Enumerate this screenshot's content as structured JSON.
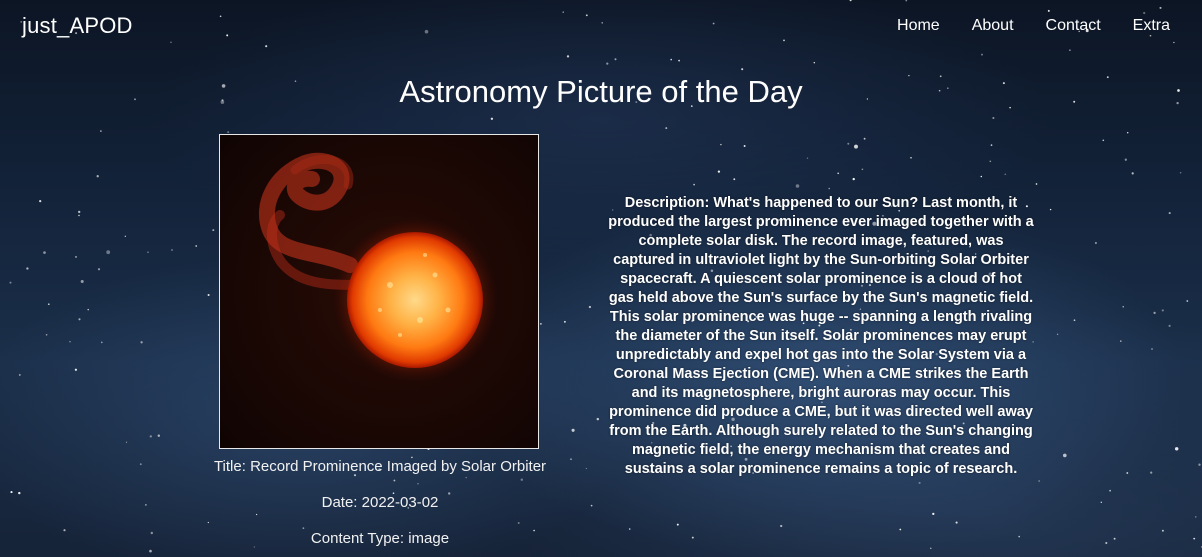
{
  "navbar": {
    "brand": "just_APOD",
    "links": [
      {
        "label": "Home"
      },
      {
        "label": "About"
      },
      {
        "label": "Contact"
      },
      {
        "label": "Extra"
      }
    ]
  },
  "main": {
    "title": "Astronomy Picture of the Day",
    "image": {
      "subject": "solar-prominence-image"
    },
    "meta": {
      "title_line": "Title: Record Prominence Imaged by Solar Orbiter",
      "date_line": "Date: 2022-03-02",
      "content_type_line": "Content Type: image"
    },
    "description": "Description: What's happened to our Sun? Last month, it produced the largest prominence ever imaged together with a complete solar disk. The record image, featured, was captured in ultraviolet light by the Sun-orbiting Solar Orbiter spacecraft. A quiescent solar prominence is a cloud of hot gas held above the Sun's surface by the Sun's magnetic field. This solar prominence was huge -- spanning a length rivaling the diameter of the Sun itself. Solar prominences may erupt unpredictably and expel hot gas into the Solar System via a Coronal Mass Ejection (CME). When a CME strikes the Earth and its magnetosphere, bright auroras may occur. This prominence did produce a CME, but it was directed well away from the Earth. Although surely related to the Sun's changing magnetic field, the energy mechanism that creates and sustains a solar prominence remains a topic of research."
  },
  "colors": {
    "text": "#ffffff",
    "background_dark": "#0c1524",
    "background_nebula": "#1b2f4a",
    "sun_core": "#ffb347",
    "sun_edge": "#d42a00"
  }
}
